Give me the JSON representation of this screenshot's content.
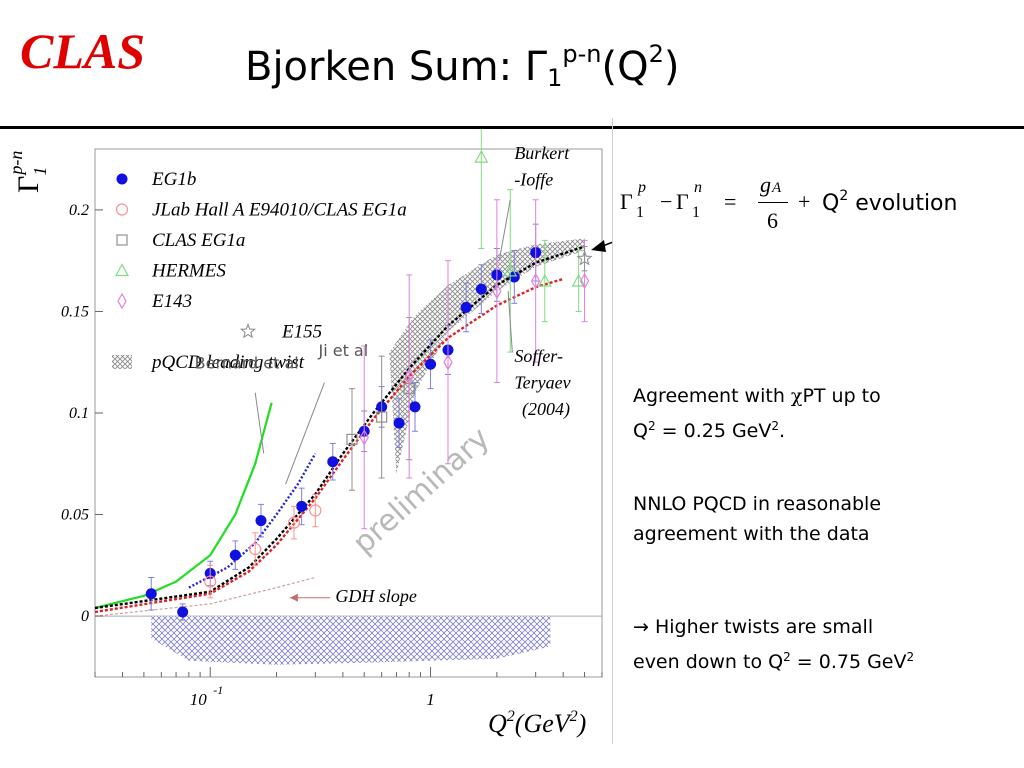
{
  "header": {
    "logo": "CLAS",
    "title_main": "Bjorken Sum: Γ",
    "title_sub": "1",
    "title_sup": "p-n",
    "title_tail": "(Q",
    "title_tail_sup": "2",
    "title_close": ")"
  },
  "formula": {
    "gamma": "Γ",
    "p": "p",
    "n": "n",
    "one": "1",
    "minus": "−",
    "equals": "=",
    "numerator": "g",
    "numerator_sub": "A",
    "denominator": "6",
    "plus": "+",
    "evolution_q": "Q",
    "evolution_sup": "2",
    "evolution_text": "evolution"
  },
  "notes": {
    "chipt_line1_pre": "Agreement with ",
    "chipt_chi": "χ",
    "chipt_line1_post": "PT up to",
    "chipt_line2_q": "Q",
    "chipt_line2_sup": "2",
    "chipt_line2_mid": " = 0.25 GeV",
    "chipt_line2_sup2": "2",
    "chipt_line2_end": ".",
    "nnlo_line1": "NNLO PQCD in reasonable",
    "nnlo_line2": "agreement with the data",
    "ht_line1": "→ Higher twists are small",
    "ht_line2_pre": "even down to Q",
    "ht_line2_sup": "2",
    "ht_line2_mid": " = 0.75 GeV",
    "ht_line2_sup2": "2"
  },
  "chart_data": {
    "type": "scatter",
    "x_scale": "log",
    "xlim": [
      0.03,
      6
    ],
    "ylim": [
      -0.03,
      0.23
    ],
    "xticks": [
      {
        "value": 0.1,
        "label": "10",
        "sup": "-1"
      },
      {
        "value": 1,
        "label": "1",
        "sup": ""
      }
    ],
    "yticks": [
      {
        "value": 0,
        "label": "0"
      },
      {
        "value": 0.05,
        "label": "0.05"
      },
      {
        "value": 0.1,
        "label": "0.1"
      },
      {
        "value": 0.15,
        "label": "0.15"
      },
      {
        "value": 0.2,
        "label": "0.2"
      }
    ],
    "xlabel": "Q",
    "xlabel_sup": "2",
    "xlabel_units": "(GeV",
    "xlabel_units_sup": "2",
    "xlabel_close": ")",
    "ylabel": "Γ",
    "ylabel_sub": "1",
    "ylabel_sup": "p-n",
    "legend_placement": "top-left",
    "legend": [
      {
        "name": "EG1b",
        "marker": "filled-circle",
        "color": "#1010e0"
      },
      {
        "name": "JLab Hall A E94010/CLAS EG1a",
        "marker": "open-circle",
        "color": "#ff9090"
      },
      {
        "name": "CLAS EG1a",
        "marker": "open-square",
        "color": "#909090"
      },
      {
        "name": "HERMES",
        "marker": "open-triangle",
        "color": "#80dd80"
      },
      {
        "name": "E143",
        "marker": "open-diamond",
        "color": "#e080e0"
      },
      {
        "name": "E155",
        "marker": "open-star",
        "color": "#909090"
      },
      {
        "name": "pQCD leading twist",
        "marker": "hatched-band",
        "color": "#9090a0"
      }
    ],
    "series": [
      {
        "name": "EG1b",
        "marker": "filled-circle",
        "color": "#1010e0",
        "points": [
          {
            "x": 0.054,
            "y": 0.011,
            "err": 0.008
          },
          {
            "x": 0.075,
            "y": 0.002,
            "err": 0.004
          },
          {
            "x": 0.1,
            "y": 0.021,
            "err": 0.006
          },
          {
            "x": 0.13,
            "y": 0.03,
            "err": 0.007
          },
          {
            "x": 0.17,
            "y": 0.047,
            "err": 0.008
          },
          {
            "x": 0.26,
            "y": 0.054,
            "err": 0.009
          },
          {
            "x": 0.36,
            "y": 0.076,
            "err": 0.009
          },
          {
            "x": 0.5,
            "y": 0.091,
            "err": 0.01
          },
          {
            "x": 0.6,
            "y": 0.103,
            "err": 0.01
          },
          {
            "x": 0.72,
            "y": 0.095,
            "err": 0.012
          },
          {
            "x": 0.85,
            "y": 0.103,
            "err": 0.012
          },
          {
            "x": 1.0,
            "y": 0.124,
            "err": 0.012
          },
          {
            "x": 1.2,
            "y": 0.131,
            "err": 0.012
          },
          {
            "x": 1.45,
            "y": 0.152,
            "err": 0.012
          },
          {
            "x": 1.7,
            "y": 0.161,
            "err": 0.012
          },
          {
            "x": 2.0,
            "y": 0.168,
            "err": 0.013
          },
          {
            "x": 2.4,
            "y": 0.167,
            "err": 0.013
          },
          {
            "x": 3.0,
            "y": 0.179,
            "err": 0.014
          }
        ]
      },
      {
        "name": "JLab Hall A E94010/CLAS EG1a",
        "marker": "open-circle",
        "color": "#ff9090",
        "points": [
          {
            "x": 0.1,
            "y": 0.017,
            "err": 0.008
          },
          {
            "x": 0.16,
            "y": 0.033,
            "err": 0.008
          },
          {
            "x": 0.24,
            "y": 0.046,
            "err": 0.008
          },
          {
            "x": 0.3,
            "y": 0.052,
            "err": 0.008
          }
        ]
      },
      {
        "name": "CLAS EG1a",
        "marker": "open-square",
        "color": "#909090",
        "points": [
          {
            "x": 0.44,
            "y": 0.087,
            "err": 0.025
          },
          {
            "x": 0.6,
            "y": 0.098,
            "err": 0.03
          },
          {
            "x": 0.8,
            "y": 0.112,
            "err": 0.035
          }
        ]
      },
      {
        "name": "HERMES",
        "marker": "open-triangle",
        "color": "#80dd80",
        "points": [
          {
            "x": 1.7,
            "y": 0.226,
            "err": 0.045
          },
          {
            "x": 2.3,
            "y": 0.17,
            "err": 0.04
          },
          {
            "x": 3.3,
            "y": 0.165,
            "err": 0.02
          },
          {
            "x": 4.7,
            "y": 0.165,
            "err": 0.015
          }
        ]
      },
      {
        "name": "E143",
        "marker": "open-diamond",
        "color": "#e080e0",
        "points": [
          {
            "x": 0.5,
            "y": 0.088,
            "err": 0.045
          },
          {
            "x": 0.8,
            "y": 0.118,
            "err": 0.05
          },
          {
            "x": 1.2,
            "y": 0.125,
            "err": 0.05
          },
          {
            "x": 2.0,
            "y": 0.16,
            "err": 0.045
          },
          {
            "x": 3.0,
            "y": 0.165,
            "err": 0.04
          },
          {
            "x": 5.0,
            "y": 0.165,
            "err": 0.02
          }
        ]
      },
      {
        "name": "E155",
        "marker": "open-star",
        "color": "#909090",
        "points": [
          {
            "x": 5.0,
            "y": 0.176,
            "err": 0.006
          }
        ]
      }
    ],
    "curves": [
      {
        "name": "Bernard et al",
        "style": "solid",
        "color": "#22dd22",
        "points": [
          [
            0.03,
            0.004
          ],
          [
            0.05,
            0.01
          ],
          [
            0.07,
            0.017
          ],
          [
            0.1,
            0.03
          ],
          [
            0.13,
            0.05
          ],
          [
            0.16,
            0.075
          ],
          [
            0.19,
            0.105
          ]
        ]
      },
      {
        "name": "Ji et al",
        "style": "dotted",
        "color": "#2222dd",
        "points": [
          [
            0.08,
            0.014
          ],
          [
            0.12,
            0.024
          ],
          [
            0.16,
            0.036
          ],
          [
            0.2,
            0.05
          ],
          [
            0.25,
            0.065
          ],
          [
            0.3,
            0.08
          ]
        ]
      },
      {
        "name": "Burkert-Ioffe",
        "style": "dashed",
        "color": "#000000",
        "points": [
          [
            0.03,
            0.004
          ],
          [
            0.1,
            0.012
          ],
          [
            0.15,
            0.024
          ],
          [
            0.2,
            0.038
          ],
          [
            0.3,
            0.06
          ],
          [
            0.4,
            0.08
          ],
          [
            0.55,
            0.1
          ],
          [
            0.8,
            0.122
          ],
          [
            1.2,
            0.143
          ],
          [
            2.0,
            0.163
          ],
          [
            3.0,
            0.174
          ],
          [
            5.0,
            0.182
          ]
        ]
      },
      {
        "name": "Soffer-Teryaev (2004)",
        "style": "dashed",
        "color": "#dd2222",
        "points": [
          [
            0.03,
            0.002
          ],
          [
            0.1,
            0.011
          ],
          [
            0.15,
            0.022
          ],
          [
            0.2,
            0.035
          ],
          [
            0.3,
            0.058
          ],
          [
            0.4,
            0.077
          ],
          [
            0.55,
            0.097
          ],
          [
            0.8,
            0.118
          ],
          [
            1.2,
            0.137
          ],
          [
            2.0,
            0.153
          ],
          [
            3.0,
            0.162
          ],
          [
            4.0,
            0.166
          ]
        ]
      },
      {
        "name": "GDH slope",
        "style": "dashed",
        "color": "#d0a0a0",
        "points": [
          [
            0.03,
            0.0
          ],
          [
            0.1,
            0.006
          ],
          [
            0.2,
            0.014
          ],
          [
            0.3,
            0.019
          ]
        ]
      }
    ],
    "band_positive": {
      "name": "pQCD leading twist",
      "upper": [
        [
          0.65,
          0.13
        ],
        [
          0.85,
          0.148
        ],
        [
          1.2,
          0.163
        ],
        [
          2.0,
          0.178
        ],
        [
          3.0,
          0.183
        ],
        [
          5.0,
          0.186
        ]
      ],
      "lower": [
        [
          5.0,
          0.18
        ],
        [
          3.0,
          0.172
        ],
        [
          2.0,
          0.16
        ],
        [
          1.2,
          0.14
        ],
        [
          0.85,
          0.11
        ],
        [
          0.7,
          0.07
        ]
      ]
    },
    "band_negative": {
      "name": "systematic uncertainty",
      "upper": [
        [
          0.054,
          0.0
        ],
        [
          3.5,
          0.0
        ]
      ],
      "lower": [
        [
          3.5,
          -0.015
        ],
        [
          2.0,
          -0.021
        ],
        [
          1.0,
          -0.022
        ],
        [
          0.5,
          -0.023
        ],
        [
          0.2,
          -0.024
        ],
        [
          0.08,
          -0.022
        ],
        [
          0.054,
          -0.011
        ]
      ]
    },
    "annotations": [
      {
        "text": "Bernard et al",
        "x": 0.085,
        "y": 0.122
      },
      {
        "text": "Ji et al",
        "x": 0.31,
        "y": 0.128
      },
      {
        "text": "Burkert",
        "x": 2.4,
        "y": 0.225
      },
      {
        "text": "-Ioffe",
        "x": 2.4,
        "y": 0.212
      },
      {
        "text": "Soffer-",
        "x": 2.4,
        "y": 0.125
      },
      {
        "text": "Teryaev",
        "x": 2.4,
        "y": 0.112
      },
      {
        "text": "(2004)",
        "x": 2.6,
        "y": 0.099
      },
      {
        "text": "GDH slope",
        "x": 0.37,
        "y": 0.007
      },
      {
        "text": "preliminary",
        "x": 0.5,
        "y": 0.03
      }
    ]
  }
}
